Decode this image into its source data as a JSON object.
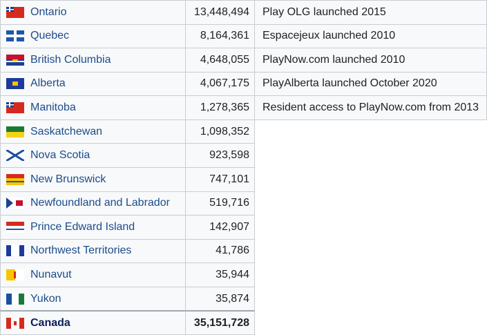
{
  "table": {
    "rows": [
      {
        "name": "Ontario",
        "population": "13,448,494",
        "note": "Play OLG launched 2015"
      },
      {
        "name": "Quebec",
        "population": "8,164,361",
        "note": "Espacejeux launched 2010"
      },
      {
        "name": "British Columbia",
        "population": "4,648,055",
        "note": "PlayNow.com launched 2010"
      },
      {
        "name": "Alberta",
        "population": "4,067,175",
        "note": "PlayAlberta launched October 2020"
      },
      {
        "name": "Manitoba",
        "population": "1,278,365",
        "note": "Resident access to PlayNow.com from 2013"
      },
      {
        "name": "Saskatchewan",
        "population": "1,098,352"
      },
      {
        "name": "Nova Scotia",
        "population": "923,598"
      },
      {
        "name": "New Brunswick",
        "population": "747,101"
      },
      {
        "name": "Newfoundland and Labrador",
        "population": "519,716"
      },
      {
        "name": "Prince Edward Island",
        "population": "142,907"
      },
      {
        "name": "Northwest Territories",
        "population": "41,786"
      },
      {
        "name": "Nunavut",
        "population": "35,944"
      },
      {
        "name": "Yukon",
        "population": "35,874"
      }
    ],
    "total": {
      "name": "Canada",
      "population": "35,151,728"
    }
  }
}
